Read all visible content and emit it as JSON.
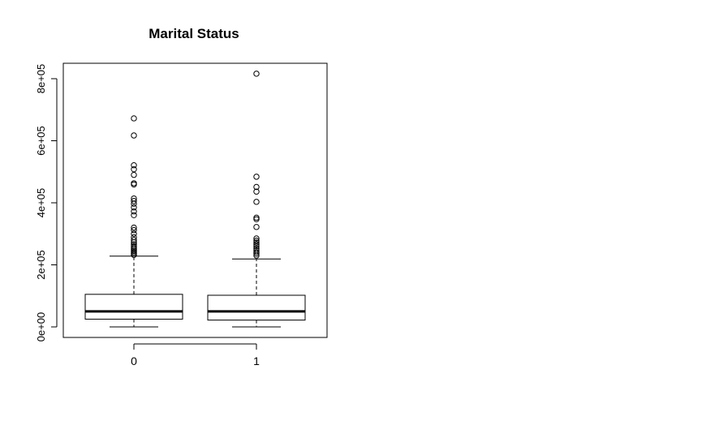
{
  "chart_data": {
    "type": "boxplot",
    "title": "Marital Status",
    "xlabel": "",
    "ylabel": "",
    "categories": [
      "0",
      "1"
    ],
    "ylim": [
      -30000,
      855000
    ],
    "y_ticks": [
      0,
      200000,
      400000,
      600000,
      800000
    ],
    "y_tick_labels": [
      "0e+00",
      "2e+05",
      "4e+05",
      "6e+05",
      "8e+05"
    ],
    "grid": false,
    "legend": "none",
    "boxes": [
      {
        "category": "0",
        "whisker_low": 0,
        "q1": 25000,
        "median": 50000,
        "q3": 105000,
        "whisker_high": 228000,
        "outliers": [
          232000,
          237000,
          241000,
          245000,
          250000,
          255000,
          260000,
          266000,
          273000,
          280000,
          289000,
          300000,
          312000,
          320000,
          360000,
          372000,
          385000,
          397000,
          406000,
          414000,
          459000,
          463000,
          490000,
          508000,
          521000,
          617000,
          672000
        ]
      },
      {
        "category": "1",
        "whisker_low": 0,
        "q1": 22000,
        "median": 50000,
        "q3": 102000,
        "whisker_high": 219000,
        "outliers": [
          230000,
          236000,
          241000,
          247000,
          253000,
          260000,
          266000,
          272000,
          278000,
          285000,
          322000,
          347000,
          352000,
          403000,
          436000,
          451000,
          484000,
          816000
        ]
      }
    ],
    "style": {
      "box_fill": "#ffffff",
      "line_color": "#000000",
      "median_color": "#000000"
    }
  }
}
